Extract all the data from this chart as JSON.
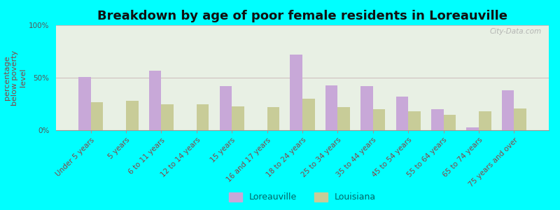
{
  "title": "Breakdown by age of poor female residents in Loreauville",
  "ylabel": "percentage\nbelow poverty\nlevel",
  "categories": [
    "Under 5 years",
    "5 years",
    "6 to 11 years",
    "12 to 14 years",
    "15 years",
    "16 and 17 years",
    "18 to 24 years",
    "25 to 34 years",
    "35 to 44 years",
    "45 to 54 years",
    "55 to 64 years",
    "65 to 74 years",
    "75 years and over"
  ],
  "loreauville": [
    51,
    0,
    57,
    0,
    42,
    0,
    72,
    43,
    42,
    32,
    20,
    3,
    38
  ],
  "louisiana": [
    27,
    28,
    25,
    25,
    23,
    22,
    30,
    22,
    20,
    18,
    15,
    18,
    21
  ],
  "loreauville_color": "#c8a8d8",
  "louisiana_color": "#c8cc98",
  "background_color": "#00ffff",
  "plot_bg": "#e8f0e4",
  "ylim": [
    0,
    100
  ],
  "yticks": [
    0,
    50,
    100
  ],
  "ytick_labels": [
    "0%",
    "50%",
    "100%"
  ],
  "title_fontsize": 13,
  "axis_label_fontsize": 8,
  "tick_fontsize": 7.5,
  "legend_fontsize": 9,
  "watermark": "City-Data.com"
}
